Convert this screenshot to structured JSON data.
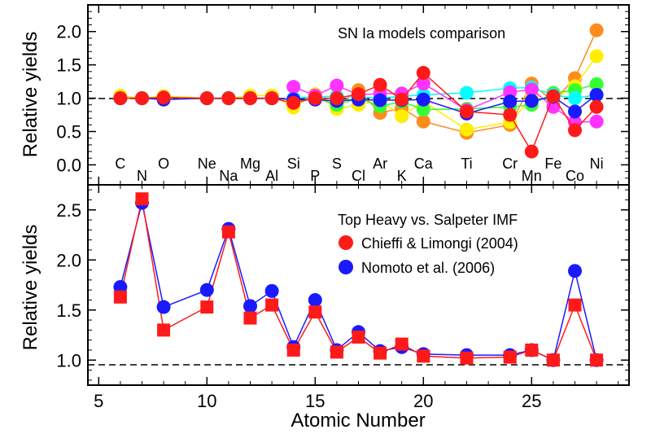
{
  "chart_data": [
    {
      "type": "line",
      "title": "SN Ia models comparison",
      "xlabel": "",
      "ylabel": "Relative yields",
      "xlim": [
        4.5,
        29.5
      ],
      "ylim": [
        -0.3,
        2.4
      ],
      "yticks": [
        0.0,
        0.5,
        1.0,
        1.5,
        2.0
      ],
      "reference_line": 1.0,
      "element_labels": [
        {
          "text": "C",
          "z": 6,
          "row": "upper"
        },
        {
          "text": "N",
          "z": 7,
          "row": "lower"
        },
        {
          "text": "O",
          "z": 8,
          "row": "upper"
        },
        {
          "text": "Ne",
          "z": 10,
          "row": "upper"
        },
        {
          "text": "Na",
          "z": 11,
          "row": "lower"
        },
        {
          "text": "Mg",
          "z": 12,
          "row": "upper"
        },
        {
          "text": "Al",
          "z": 13,
          "row": "lower"
        },
        {
          "text": "Si",
          "z": 14,
          "row": "upper"
        },
        {
          "text": "P",
          "z": 15,
          "row": "lower"
        },
        {
          "text": "S",
          "z": 16,
          "row": "upper"
        },
        {
          "text": "Cl",
          "z": 17,
          "row": "lower"
        },
        {
          "text": "Ar",
          "z": 18,
          "row": "upper"
        },
        {
          "text": "K",
          "z": 19,
          "row": "lower"
        },
        {
          "text": "Ca",
          "z": 20,
          "row": "upper"
        },
        {
          "text": "Ti",
          "z": 22,
          "row": "upper"
        },
        {
          "text": "Cr",
          "z": 24,
          "row": "upper"
        },
        {
          "text": "Mn",
          "z": 25,
          "row": "lower"
        },
        {
          "text": "Fe",
          "z": 26,
          "row": "upper"
        },
        {
          "text": "Co",
          "z": 27,
          "row": "lower"
        },
        {
          "text": "Ni",
          "z": 28,
          "row": "upper"
        }
      ],
      "series": [
        {
          "color": "#ff8c1a",
          "x": [
            14,
            15,
            16,
            17,
            18,
            19,
            20,
            22,
            24,
            25,
            26,
            27,
            28
          ],
          "y": [
            0.92,
            1.05,
            0.88,
            1.12,
            0.78,
            0.85,
            0.65,
            0.48,
            0.6,
            1.22,
            0.95,
            1.3,
            2.02
          ]
        },
        {
          "color": "#ffee00",
          "x": [
            6,
            7,
            8,
            10,
            11,
            12,
            13,
            14,
            15,
            16,
            17,
            18,
            19,
            20,
            22,
            24,
            25,
            26,
            27,
            28
          ],
          "y": [
            1.04,
            1.0,
            1.03,
            1.0,
            1.0,
            1.04,
            1.04,
            0.86,
            1.06,
            0.84,
            0.9,
            0.97,
            0.73,
            0.95,
            0.53,
            0.64,
            1.0,
            0.98,
            1.18,
            1.63
          ]
        },
        {
          "color": "#33ff33",
          "x": [
            14,
            15,
            16,
            17,
            18,
            19,
            20,
            22,
            24,
            25,
            26,
            27,
            28
          ],
          "y": [
            0.95,
            1.0,
            0.9,
            1.0,
            0.88,
            0.95,
            0.83,
            0.84,
            0.87,
            0.9,
            1.08,
            1.12,
            1.21
          ]
        },
        {
          "color": "#00ffff",
          "x": [
            14,
            15,
            16,
            17,
            18,
            19,
            20,
            22,
            24,
            25,
            26,
            27,
            28
          ],
          "y": [
            1.0,
            1.02,
            1.03,
            1.02,
            1.0,
            1.03,
            1.05,
            1.08,
            1.15,
            1.16,
            1.05,
            1.0,
            1.05
          ]
        },
        {
          "color": "#ff33ff",
          "x": [
            14,
            15,
            16,
            17,
            18,
            19,
            20,
            22,
            24,
            25,
            26,
            27,
            28
          ],
          "y": [
            1.17,
            1.04,
            1.19,
            1.05,
            1.07,
            1.07,
            1.22,
            0.82,
            1.09,
            1.13,
            0.87,
            0.64,
            0.65
          ]
        },
        {
          "color": "#1a1aff",
          "x": [
            6,
            7,
            8,
            10,
            11,
            12,
            13,
            14,
            15,
            16,
            17,
            18,
            19,
            20,
            22,
            24,
            25,
            26,
            27,
            28
          ],
          "y": [
            1.0,
            1.0,
            0.98,
            1.0,
            1.0,
            1.0,
            1.0,
            0.98,
            0.98,
            0.96,
            0.98,
            0.97,
            0.97,
            0.98,
            0.77,
            0.95,
            0.96,
            1.02,
            0.8,
            1.05
          ]
        },
        {
          "color": "#ff1a1a",
          "x": [
            6,
            7,
            8,
            10,
            11,
            12,
            13,
            14,
            15,
            16,
            17,
            18,
            19,
            20,
            22,
            24,
            25,
            26,
            27,
            28
          ],
          "y": [
            1.0,
            1.0,
            1.01,
            1.0,
            1.0,
            1.0,
            1.0,
            0.93,
            1.0,
            1.0,
            1.06,
            1.2,
            0.98,
            1.38,
            0.8,
            0.75,
            0.2,
            1.03,
            0.52,
            0.87
          ]
        }
      ]
    },
    {
      "type": "line",
      "title": "Top Heavy vs. Salpeter IMF",
      "xlabel": "Atomic Number",
      "ylabel": "Relative yields",
      "xlim": [
        4.5,
        29.5
      ],
      "ylim": [
        0.75,
        2.75
      ],
      "xticks": [
        5,
        10,
        15,
        20,
        25
      ],
      "yticks": [
        1.0,
        1.5,
        2.0,
        2.5
      ],
      "reference_line": 1.0,
      "series": [
        {
          "name": "Chieffi & Limongi (2004)",
          "color": "#ff1a1a",
          "marker": "square",
          "x": [
            6,
            7,
            8,
            10,
            11,
            12,
            13,
            14,
            15,
            16,
            17,
            18,
            19,
            20,
            22,
            24,
            25,
            26,
            27,
            28
          ],
          "y": [
            1.63,
            2.61,
            1.3,
            1.53,
            2.28,
            1.42,
            1.55,
            1.1,
            1.48,
            1.08,
            1.23,
            1.07,
            1.16,
            1.04,
            1.02,
            1.03,
            1.1,
            1.0,
            1.55,
            1.0
          ]
        },
        {
          "name": "Nomoto et al. (2006)",
          "color": "#1a1aff",
          "marker": "circle",
          "x": [
            6,
            7,
            8,
            10,
            11,
            12,
            13,
            14,
            15,
            16,
            17,
            18,
            19,
            20,
            22,
            24,
            25,
            26,
            27,
            28
          ],
          "y": [
            1.73,
            2.57,
            1.53,
            1.7,
            2.31,
            1.54,
            1.69,
            1.13,
            1.6,
            1.1,
            1.28,
            1.09,
            1.13,
            1.06,
            1.05,
            1.05,
            1.1,
            1.0,
            1.89,
            1.0
          ]
        }
      ]
    }
  ]
}
